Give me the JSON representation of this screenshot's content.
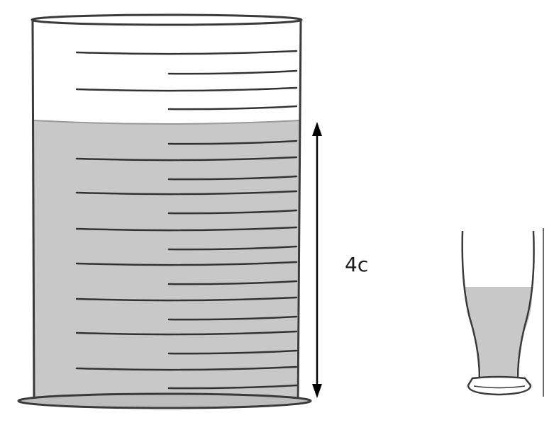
{
  "measurement": {
    "label": "4c"
  },
  "colors": {
    "liquid": "#c8c8c8",
    "outline": "#3a3a3a",
    "arrow": "#000000"
  },
  "icons": {
    "container": "graduated-cylinder-icon",
    "cup": "drinking-glass-icon"
  }
}
